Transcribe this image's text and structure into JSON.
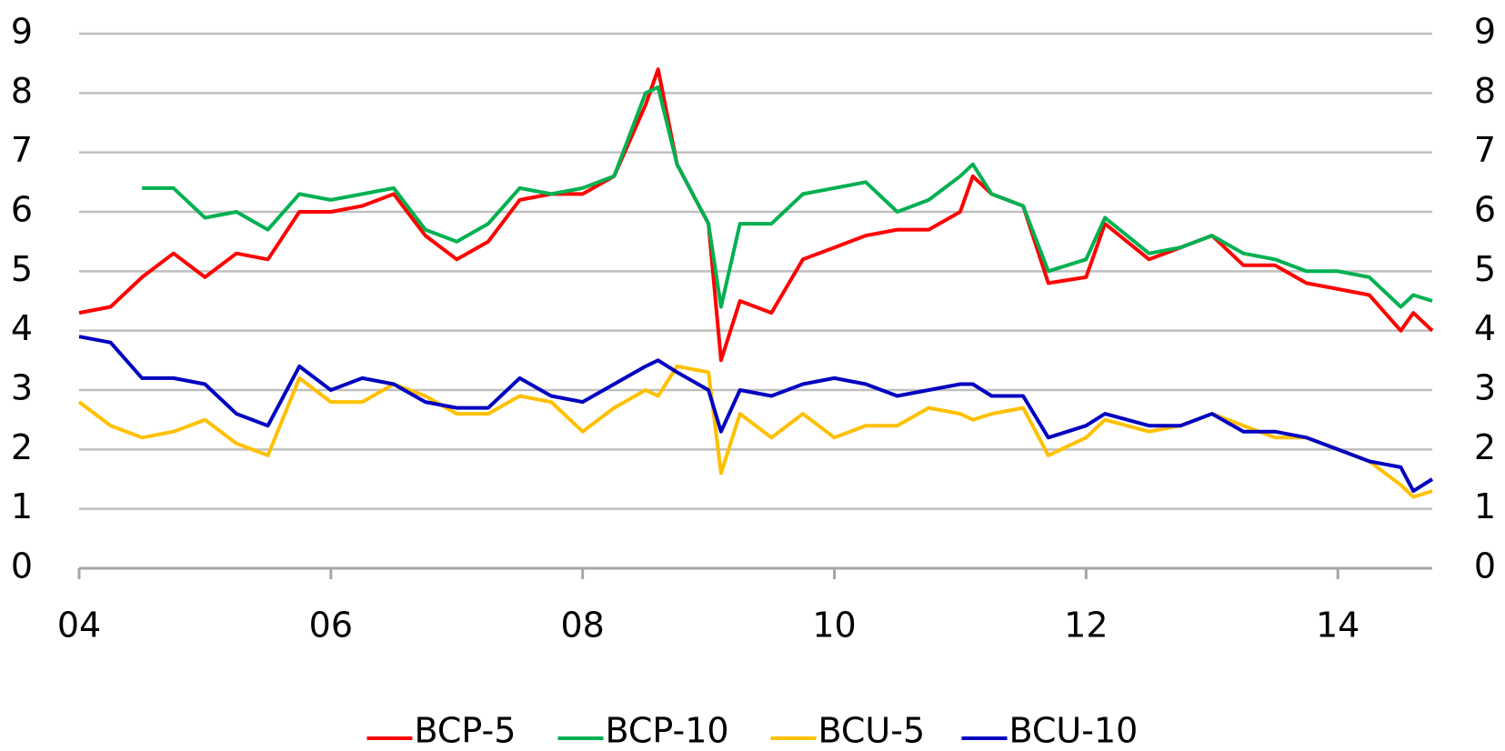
{
  "chart_data": {
    "type": "line",
    "x": [
      4.0,
      4.25,
      4.5,
      4.75,
      5.0,
      5.25,
      5.5,
      5.75,
      6.0,
      6.25,
      6.5,
      6.75,
      7.0,
      7.25,
      7.5,
      7.75,
      8.0,
      8.25,
      8.5,
      8.6,
      8.75,
      9.0,
      9.1,
      9.25,
      9.5,
      9.75,
      10.0,
      10.25,
      10.5,
      10.75,
      11.0,
      11.1,
      11.25,
      11.5,
      11.7,
      12.0,
      12.15,
      12.5,
      12.75,
      13.0,
      13.25,
      13.5,
      13.75,
      14.0,
      14.25,
      14.5,
      14.6,
      14.75
    ],
    "series": [
      {
        "name": "BCP-5",
        "color": "#ff0000",
        "values": [
          4.3,
          4.4,
          4.9,
          5.3,
          4.9,
          5.3,
          5.2,
          6.0,
          6.0,
          6.1,
          6.3,
          5.6,
          5.2,
          5.5,
          6.2,
          6.3,
          6.3,
          6.6,
          7.8,
          8.4,
          6.8,
          5.8,
          3.5,
          4.5,
          4.3,
          5.2,
          5.4,
          5.6,
          5.7,
          5.7,
          6.0,
          6.6,
          6.3,
          6.1,
          4.8,
          4.9,
          5.8,
          5.2,
          5.4,
          5.6,
          5.1,
          5.1,
          4.8,
          4.7,
          4.6,
          4.0,
          4.3,
          4.0
        ]
      },
      {
        "name": "BCP-10",
        "color": "#00b050",
        "values": [
          null,
          null,
          6.4,
          6.4,
          5.9,
          6.0,
          5.7,
          6.3,
          6.2,
          6.3,
          6.4,
          5.7,
          5.5,
          5.8,
          6.4,
          6.3,
          6.4,
          6.6,
          8.0,
          8.1,
          6.8,
          5.8,
          4.4,
          5.8,
          5.8,
          6.3,
          6.4,
          6.5,
          6.0,
          6.2,
          6.6,
          6.8,
          6.3,
          6.1,
          5.0,
          5.2,
          5.9,
          5.3,
          5.4,
          5.6,
          5.3,
          5.2,
          5.0,
          5.0,
          4.9,
          4.4,
          4.6,
          4.5
        ]
      },
      {
        "name": "BCU-5",
        "color": "#ffc000",
        "values": [
          2.8,
          2.4,
          2.2,
          2.3,
          2.5,
          2.1,
          1.9,
          3.2,
          2.8,
          2.8,
          3.1,
          2.9,
          2.6,
          2.6,
          2.9,
          2.8,
          2.3,
          2.7,
          3.0,
          2.9,
          3.4,
          3.3,
          1.6,
          2.6,
          2.2,
          2.6,
          2.2,
          2.4,
          2.4,
          2.7,
          2.6,
          2.5,
          2.6,
          2.7,
          1.9,
          2.2,
          2.5,
          2.3,
          2.4,
          2.6,
          2.4,
          2.2,
          2.2,
          2.0,
          1.8,
          1.4,
          1.2,
          1.3
        ]
      },
      {
        "name": "BCU-10",
        "color": "#0000c0",
        "values": [
          3.9,
          3.8,
          3.2,
          3.2,
          3.1,
          2.6,
          2.4,
          3.4,
          3.0,
          3.2,
          3.1,
          2.8,
          2.7,
          2.7,
          3.2,
          2.9,
          2.8,
          3.1,
          3.4,
          3.5,
          3.3,
          3.0,
          2.3,
          3.0,
          2.9,
          3.1,
          3.2,
          3.1,
          2.9,
          3.0,
          3.1,
          3.1,
          2.9,
          2.9,
          2.2,
          2.4,
          2.6,
          2.4,
          2.4,
          2.6,
          2.3,
          2.3,
          2.2,
          2.0,
          1.8,
          1.7,
          1.3,
          1.5
        ]
      }
    ],
    "xlim": [
      4,
      14.75
    ],
    "xticks": [
      {
        "value": 4,
        "label": "04"
      },
      {
        "value": 6,
        "label": "06"
      },
      {
        "value": 8,
        "label": "08"
      },
      10,
      12,
      14
    ],
    "ylim": [
      0,
      9
    ],
    "yticks": [
      0,
      1,
      2,
      3,
      4,
      5,
      6,
      7,
      8,
      9
    ],
    "y2lim": [
      0,
      9
    ],
    "y2ticks": [
      0,
      1,
      2,
      3,
      4,
      5,
      6,
      7,
      8,
      9
    ],
    "grid": true,
    "legend": "bottom"
  }
}
